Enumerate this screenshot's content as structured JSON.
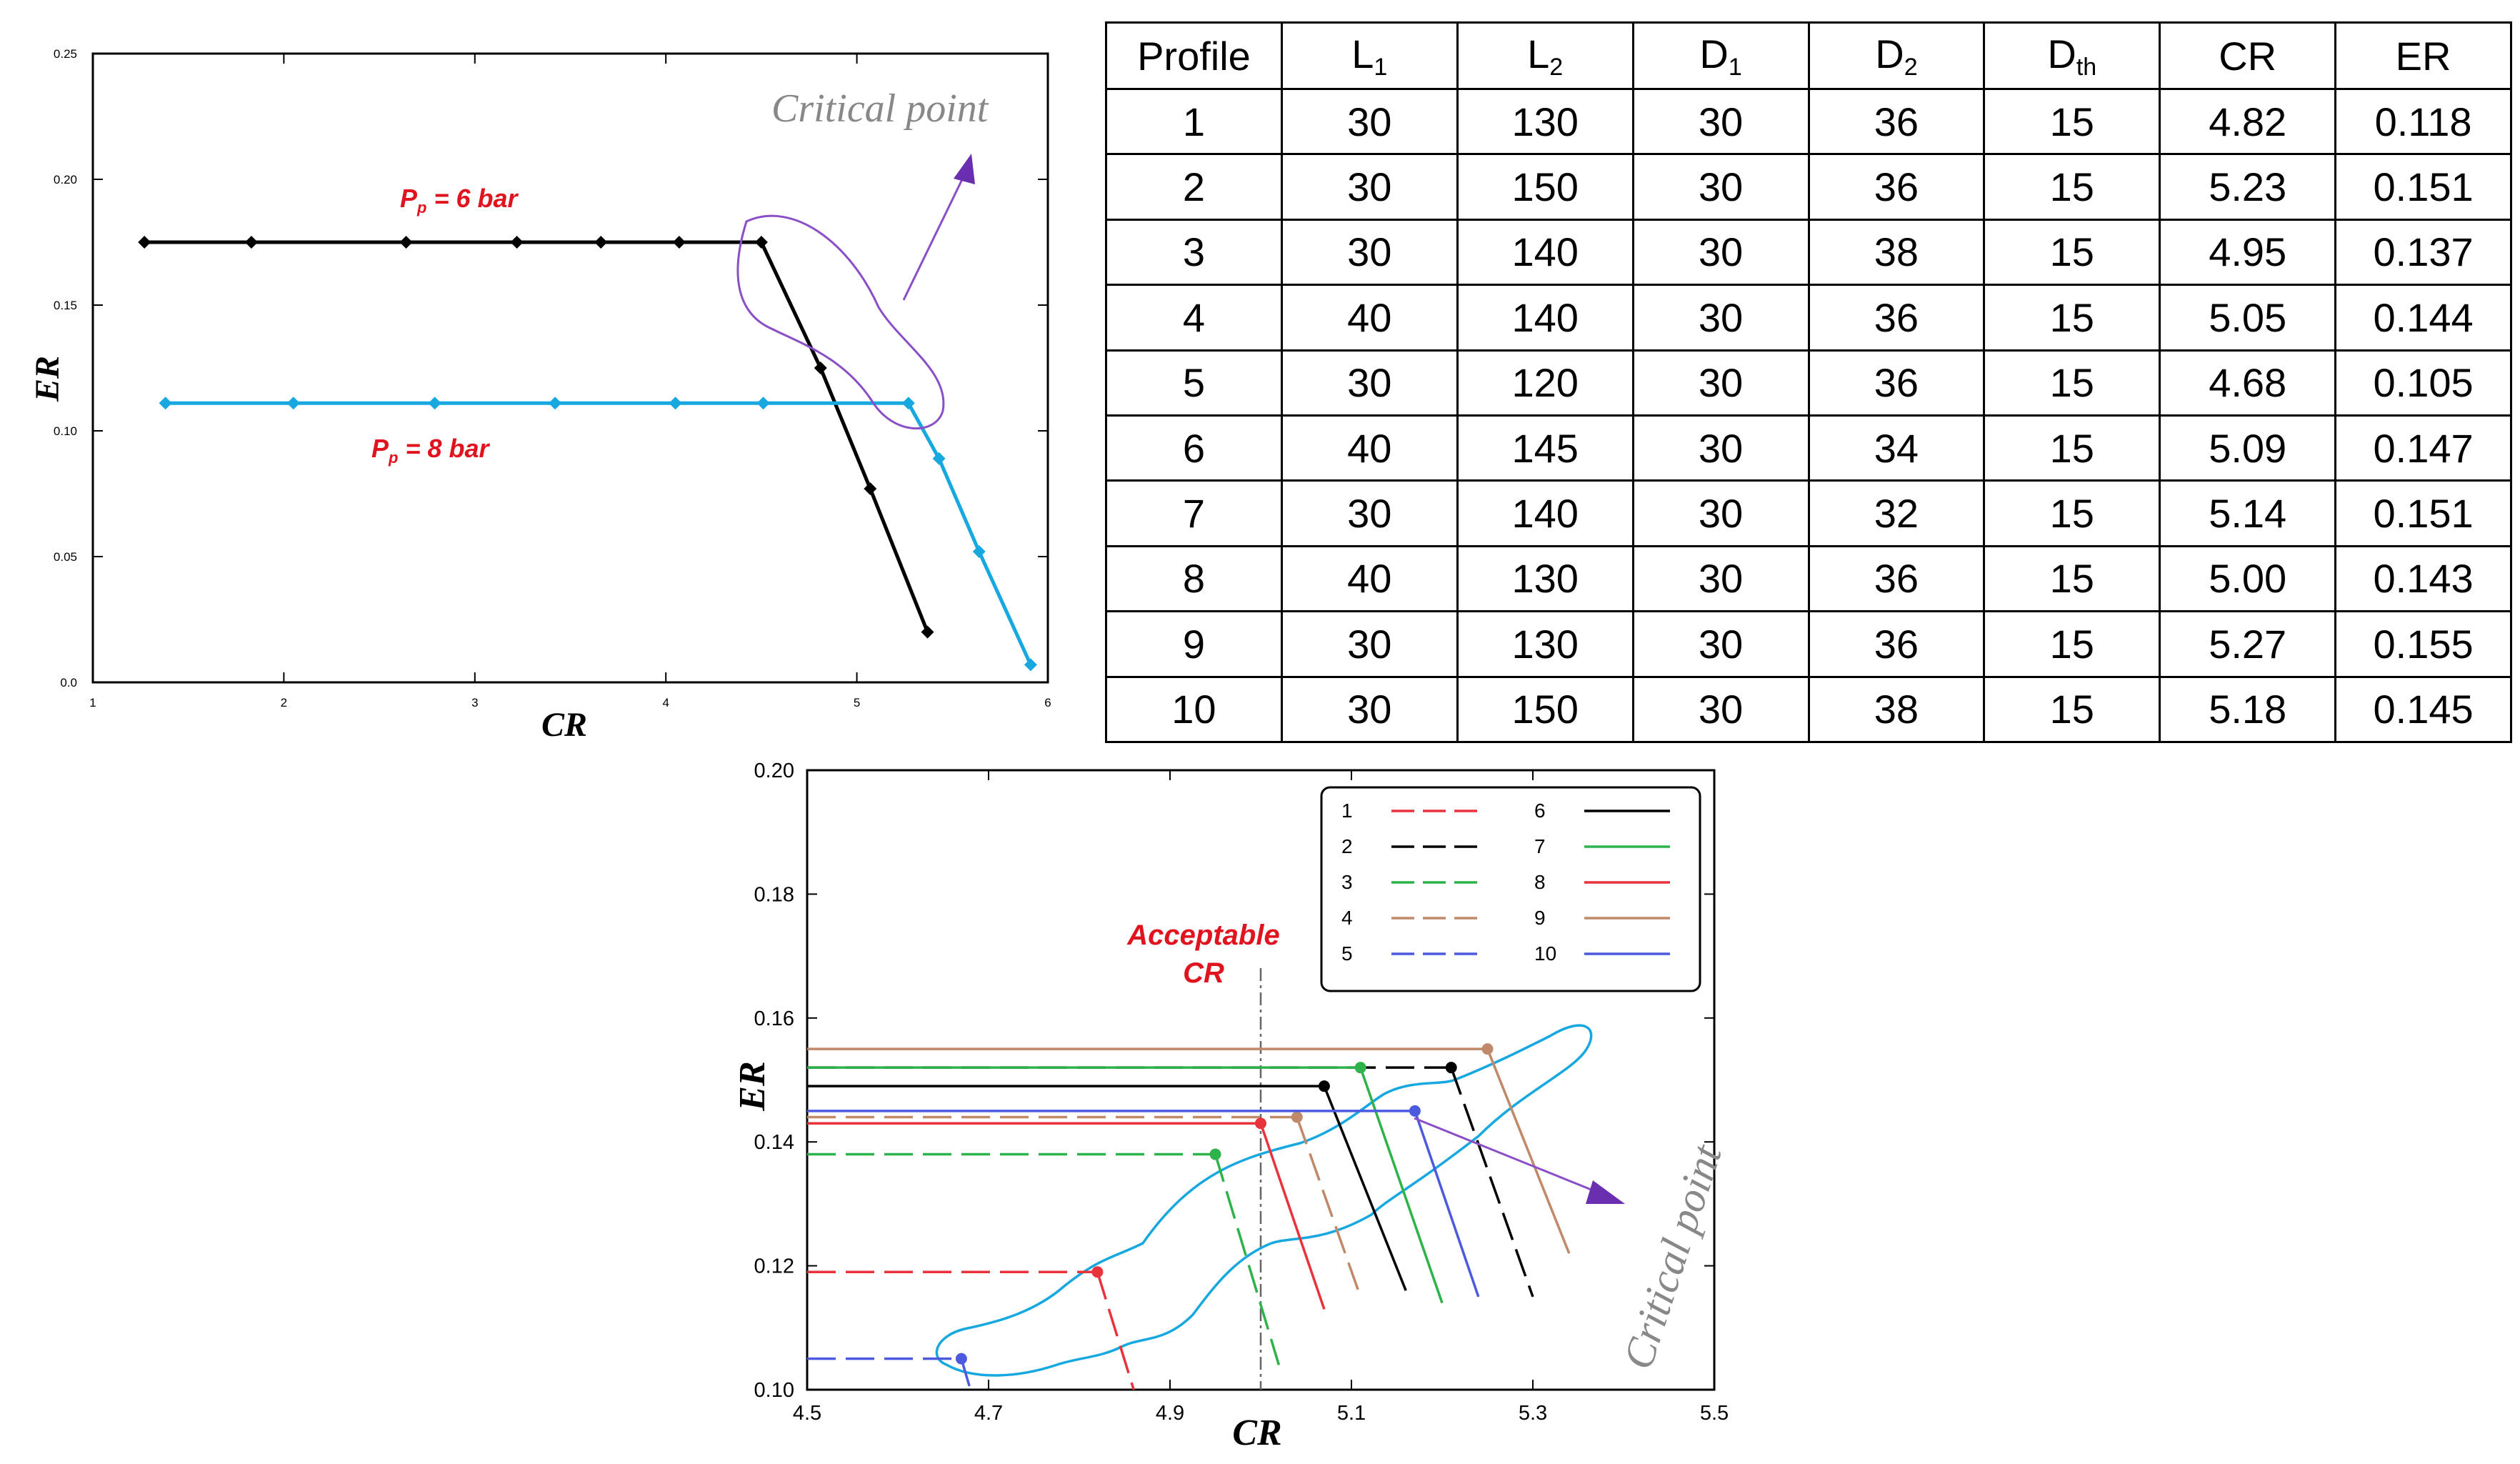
{
  "chart_data": [
    {
      "type": "line",
      "xlabel": "CR",
      "ylabel": "ER",
      "xlim": [
        1,
        6
      ],
      "ylim": [
        0,
        0.25
      ],
      "x_ticks": [
        "1",
        "2",
        "3",
        "4",
        "5",
        "6"
      ],
      "y_ticks": [
        "0.0",
        "0.05",
        "0.10",
        "0.15",
        "0.20",
        "0.25"
      ],
      "series": [
        {
          "name": "P_p = 6 bar",
          "label_main": "P",
          "label_sub": "p",
          "label_rest": " = 6 bar",
          "color": "#000000",
          "x": [
            1.27,
            1.83,
            2.64,
            3.22,
            3.66,
            4.07,
            4.5,
            4.81,
            5.07,
            5.37
          ],
          "y": [
            0.175,
            0.175,
            0.175,
            0.175,
            0.175,
            0.175,
            0.175,
            0.125,
            0.077,
            0.02
          ]
        },
        {
          "name": "P_p = 8 bar",
          "label_main": "P",
          "label_sub": "p",
          "label_rest": " = 8 bar",
          "color": "#18a8e0",
          "x": [
            1.38,
            2.05,
            2.79,
            3.42,
            4.05,
            4.51,
            5.27,
            5.43,
            5.64,
            5.91
          ],
          "y": [
            0.111,
            0.111,
            0.111,
            0.111,
            0.111,
            0.111,
            0.111,
            0.089,
            0.052,
            0.007
          ]
        }
      ],
      "annotation": "Critical point"
    },
    {
      "type": "line",
      "xlabel": "CR",
      "ylabel": "ER",
      "xlim": [
        4.5,
        5.5
      ],
      "ylim": [
        0.1,
        0.2
      ],
      "x_ticks": [
        "4.5",
        "4.7",
        "4.9",
        "5.1",
        "5.3",
        "5.5"
      ],
      "y_ticks": [
        "0.10",
        "0.12",
        "0.14",
        "0.16",
        "0.18",
        "0.20"
      ],
      "acceptable_cr": 5.0,
      "acceptable_label": [
        "Acceptable",
        "CR"
      ],
      "annotation": "Critical point",
      "series": [
        {
          "name": "1",
          "color": "#e8323c",
          "dash": true,
          "critical": [
            4.82,
            0.119
          ],
          "end": [
            4.86,
            0.1
          ]
        },
        {
          "name": "2",
          "color": "#000000",
          "dash": true,
          "critical": [
            5.21,
            0.152
          ],
          "end": [
            5.3,
            0.115
          ]
        },
        {
          "name": "3",
          "color": "#2db34a",
          "dash": true,
          "critical": [
            4.95,
            0.138
          ],
          "end": [
            5.02,
            0.104
          ]
        },
        {
          "name": "4",
          "color": "#c08a6a",
          "dash": true,
          "critical": [
            5.04,
            0.144
          ],
          "end": [
            5.11,
            0.115
          ]
        },
        {
          "name": "5",
          "color": "#4c5ae0",
          "dash": true,
          "critical": [
            4.67,
            0.105
          ],
          "end": [
            4.68,
            0.1
          ]
        },
        {
          "name": "6",
          "color": "#000000",
          "dash": false,
          "critical": [
            5.07,
            0.149
          ],
          "end": [
            5.16,
            0.116
          ]
        },
        {
          "name": "7",
          "color": "#2db34a",
          "dash": false,
          "critical": [
            5.11,
            0.152
          ],
          "end": [
            5.2,
            0.114
          ]
        },
        {
          "name": "8",
          "color": "#e8323c",
          "dash": false,
          "critical": [
            5.0,
            0.143
          ],
          "end": [
            5.07,
            0.113
          ]
        },
        {
          "name": "9",
          "color": "#c08a6a",
          "dash": false,
          "critical": [
            5.25,
            0.155
          ],
          "end": [
            5.34,
            0.122
          ]
        },
        {
          "name": "10",
          "color": "#4c5ae0",
          "dash": false,
          "critical": [
            5.17,
            0.145
          ],
          "end": [
            5.24,
            0.115
          ]
        }
      ]
    }
  ],
  "table": {
    "headers": [
      {
        "main": "Profile",
        "sub": ""
      },
      {
        "main": "L",
        "sub": "1"
      },
      {
        "main": "L",
        "sub": "2"
      },
      {
        "main": "D",
        "sub": "1"
      },
      {
        "main": "D",
        "sub": "2"
      },
      {
        "main": "D",
        "sub": "th"
      },
      {
        "main": "CR",
        "sub": ""
      },
      {
        "main": "ER",
        "sub": ""
      }
    ],
    "rows": [
      [
        "1",
        "30",
        "130",
        "30",
        "36",
        "15",
        "4.82",
        "0.118"
      ],
      [
        "2",
        "30",
        "150",
        "30",
        "36",
        "15",
        "5.23",
        "0.151"
      ],
      [
        "3",
        "30",
        "140",
        "30",
        "38",
        "15",
        "4.95",
        "0.137"
      ],
      [
        "4",
        "40",
        "140",
        "30",
        "36",
        "15",
        "5.05",
        "0.144"
      ],
      [
        "5",
        "30",
        "120",
        "30",
        "36",
        "15",
        "4.68",
        "0.105"
      ],
      [
        "6",
        "40",
        "145",
        "30",
        "34",
        "15",
        "5.09",
        "0.147"
      ],
      [
        "7",
        "30",
        "140",
        "30",
        "32",
        "15",
        "5.14",
        "0.151"
      ],
      [
        "8",
        "40",
        "130",
        "30",
        "36",
        "15",
        "5.00",
        "0.143"
      ],
      [
        "9",
        "30",
        "130",
        "30",
        "36",
        "15",
        "5.27",
        "0.155"
      ],
      [
        "10",
        "30",
        "150",
        "30",
        "38",
        "15",
        "5.18",
        "0.145"
      ]
    ]
  }
}
